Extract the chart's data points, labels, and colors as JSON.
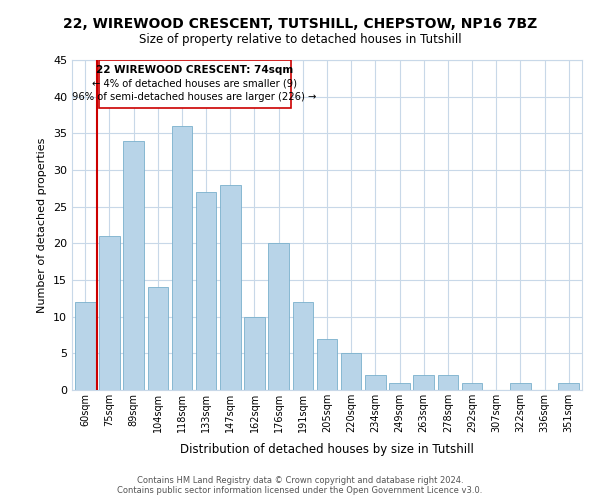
{
  "title": "22, WIREWOOD CRESCENT, TUTSHILL, CHEPSTOW, NP16 7BZ",
  "subtitle": "Size of property relative to detached houses in Tutshill",
  "xlabel": "Distribution of detached houses by size in Tutshill",
  "ylabel": "Number of detached properties",
  "bar_labels": [
    "60sqm",
    "75sqm",
    "89sqm",
    "104sqm",
    "118sqm",
    "133sqm",
    "147sqm",
    "162sqm",
    "176sqm",
    "191sqm",
    "205sqm",
    "220sqm",
    "234sqm",
    "249sqm",
    "263sqm",
    "278sqm",
    "292sqm",
    "307sqm",
    "322sqm",
    "336sqm",
    "351sqm"
  ],
  "bar_values": [
    12,
    21,
    34,
    14,
    36,
    27,
    28,
    10,
    20,
    12,
    7,
    5,
    2,
    1,
    2,
    2,
    1,
    0,
    1,
    0,
    1
  ],
  "bar_color": "#b8d4e8",
  "bar_edge_color": "#7ab0cc",
  "highlight_color": "#cc0000",
  "annotation_line1": "22 WIREWOOD CRESCENT: 74sqm",
  "annotation_line2": "← 4% of detached houses are smaller (9)",
  "annotation_line3": "96% of semi-detached houses are larger (226) →",
  "ylim": [
    0,
    45
  ],
  "yticks": [
    0,
    5,
    10,
    15,
    20,
    25,
    30,
    35,
    40,
    45
  ],
  "footer_line1": "Contains HM Land Registry data © Crown copyright and database right 2024.",
  "footer_line2": "Contains public sector information licensed under the Open Government Licence v3.0.",
  "bg_color": "#ffffff",
  "grid_color": "#c8d8e8"
}
